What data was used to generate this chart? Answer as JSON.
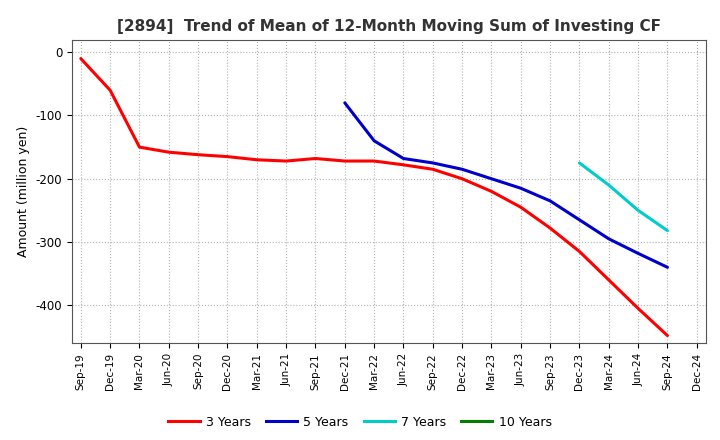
{
  "title": "[2894]  Trend of Mean of 12-Month Moving Sum of Investing CF",
  "ylabel": "Amount (million yen)",
  "background_color": "#ffffff",
  "grid_color": "#b0b0b0",
  "x_ticks": [
    "Sep-19",
    "Dec-19",
    "Mar-20",
    "Jun-20",
    "Sep-20",
    "Dec-20",
    "Mar-21",
    "Jun-21",
    "Sep-21",
    "Dec-21",
    "Mar-22",
    "Jun-22",
    "Sep-22",
    "Dec-22",
    "Mar-23",
    "Jun-23",
    "Sep-23",
    "Dec-23",
    "Mar-24",
    "Jun-24",
    "Sep-24",
    "Dec-24"
  ],
  "ylim": [
    -460,
    20
  ],
  "yticks": [
    0,
    -100,
    -200,
    -300,
    -400
  ],
  "series": [
    {
      "name": "3 Years",
      "color": "#ff0000",
      "data_x": [
        "Sep-19",
        "Dec-19",
        "Mar-20",
        "Jun-20",
        "Sep-20",
        "Dec-20",
        "Mar-21",
        "Jun-21",
        "Sep-21",
        "Dec-21",
        "Mar-22",
        "Jun-22",
        "Sep-22",
        "Dec-22",
        "Mar-23",
        "Jun-23",
        "Sep-23",
        "Dec-23",
        "Mar-24",
        "Jun-24",
        "Sep-24"
      ],
      "data_y": [
        -10,
        -60,
        -150,
        -158,
        -162,
        -165,
        -170,
        -172,
        -168,
        -172,
        -172,
        -178,
        -185,
        -200,
        -220,
        -245,
        -278,
        -315,
        -360,
        -405,
        -448
      ]
    },
    {
      "name": "5 Years",
      "color": "#0000cc",
      "data_x": [
        "Dec-21",
        "Mar-22",
        "Jun-22",
        "Sep-22",
        "Dec-22",
        "Mar-23",
        "Jun-23",
        "Sep-23",
        "Dec-23",
        "Mar-24",
        "Jun-24",
        "Sep-24"
      ],
      "data_y": [
        -80,
        -140,
        -168,
        -175,
        -185,
        -200,
        -215,
        -235,
        -265,
        -295,
        -318,
        -340
      ]
    },
    {
      "name": "7 Years",
      "color": "#00cccc",
      "data_x": [
        "Dec-23",
        "Mar-24",
        "Jun-24",
        "Sep-24"
      ],
      "data_y": [
        -175,
        -210,
        -250,
        -282
      ]
    },
    {
      "name": "10 Years",
      "color": "#008000",
      "data_x": [],
      "data_y": []
    }
  ]
}
